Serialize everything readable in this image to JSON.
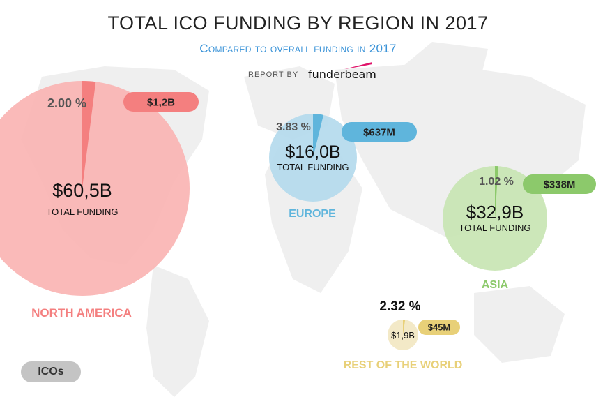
{
  "header": {
    "title": "TOTAL ICO FUNDING BY REGION IN 2017",
    "subtitle": "Compared to overall funding in 2017",
    "report_by": "REPORT BY",
    "brand": "funderbeam"
  },
  "legend": {
    "label": "ICOs"
  },
  "chart_data": {
    "type": "pie",
    "title": "TOTAL ICO FUNDING BY REGION IN 2017",
    "subtitle": "Compared to overall funding in 2017",
    "total_label": "TOTAL FUNDING",
    "regions": [
      {
        "name": "NORTH AMERICA",
        "total": "$60,5B",
        "ico": "$1,2B",
        "percent": "2.00 %",
        "share": 0.02,
        "color": "#f47f7f",
        "light": "#f9b3b1"
      },
      {
        "name": "EUROPE",
        "total": "$16,0B",
        "ico": "$637M",
        "percent": "3.83 %",
        "share": 0.0383,
        "color": "#5fb5dc",
        "light": "#b2d9ec"
      },
      {
        "name": "ASIA",
        "total": "$32,9B",
        "ico": "$338M",
        "percent": "1.02 %",
        "share": 0.0102,
        "color": "#8cc96b",
        "light": "#c7e4b1"
      },
      {
        "name": "REST OF THE WORLD",
        "total": "$1,9B",
        "ico": "$45M",
        "percent": "2.32 %",
        "share": 0.0232,
        "color": "#e8d078",
        "light": "#f2e7c1"
      }
    ],
    "colors": {
      "ico_legend": "#c4c4c4",
      "map": "#eeeeee"
    }
  }
}
